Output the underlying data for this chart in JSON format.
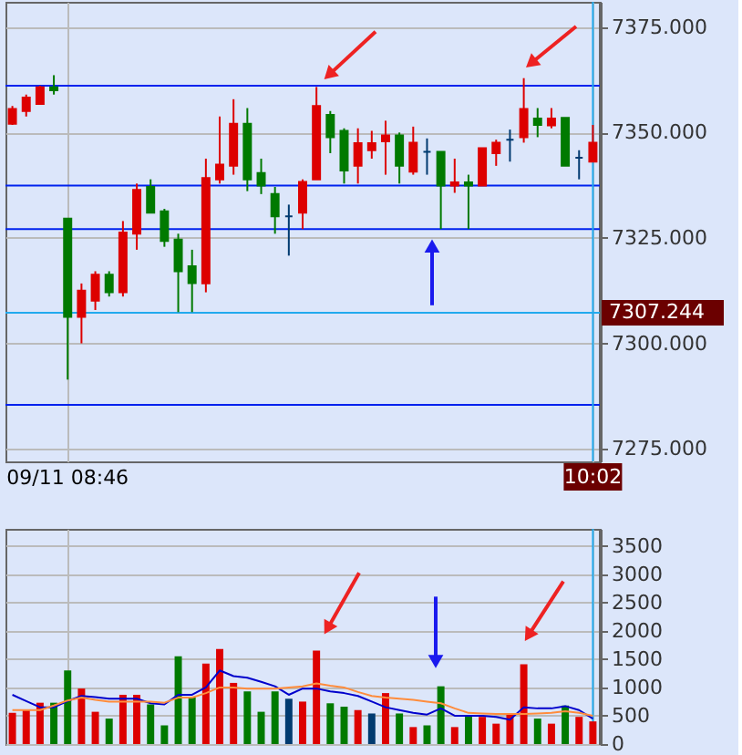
{
  "chart_data": [
    {
      "type": "candlestick",
      "categories": [
        null,
        null,
        null,
        null,
        "09/11 08:46",
        null,
        null,
        null,
        null,
        null,
        null,
        null,
        null,
        null,
        null,
        null,
        null,
        null,
        null,
        null,
        null,
        null,
        null,
        null,
        null,
        null,
        null,
        null,
        null,
        null,
        null,
        null,
        null,
        null,
        null,
        null,
        null,
        null,
        null,
        null,
        null,
        null,
        "10:02"
      ],
      "ohlc": [
        [
          7352.1,
          7356.3,
          7351.8,
          7355.6
        ],
        [
          7355.1,
          7359.0,
          7353.8,
          7358.3
        ],
        [
          7356.8,
          7361.1,
          7356.8,
          7360.7
        ],
        [
          7360.7,
          7363.6,
          7359.0,
          7360.0
        ],
        [
          7329.6,
          7329.6,
          7291.4,
          7306.3
        ],
        [
          7306.3,
          7314.2,
          7300.0,
          7312.5
        ],
        [
          7310.1,
          7317.1,
          7307.9,
          7316.3
        ],
        [
          7316.3,
          7317.1,
          7311.1,
          7312.1
        ],
        [
          7312.1,
          7329.0,
          7311.1,
          7326.3
        ],
        [
          7326.0,
          7337.9,
          7322.2,
          7336.4
        ],
        [
          7337.1,
          7338.9,
          7331.0,
          7331.0
        ],
        [
          7331.3,
          7331.9,
          7322.9,
          7324.3
        ],
        [
          7324.6,
          7326.0,
          7307.4,
          7317.1
        ],
        [
          7318.3,
          7322.2,
          7307.4,
          7314.3
        ],
        [
          7314.2,
          7343.8,
          7312.1,
          7339.2
        ],
        [
          7338.9,
          7353.8,
          7337.9,
          7342.4
        ],
        [
          7342.1,
          7357.9,
          7340.0,
          7352.1
        ],
        [
          7352.1,
          7355.8,
          7336.1,
          7338.9
        ],
        [
          7340.4,
          7343.8,
          7335.4,
          7337.4
        ],
        [
          7335.4,
          7337.1,
          7326.0,
          7330.1
        ],
        [
          7330.1,
          7332.9,
          7320.8,
          7330.1
        ],
        [
          7331.0,
          7338.9,
          7327.1,
          7338.3
        ],
        [
          7338.9,
          7360.8,
          7338.9,
          7356.3
        ],
        [
          7354.2,
          7355.1,
          7345.1,
          7348.9
        ],
        [
          7350.4,
          7351.0,
          7337.9,
          7341.0
        ],
        [
          7342.1,
          7351.0,
          7337.9,
          7347.5
        ],
        [
          7345.8,
          7350.4,
          7343.8,
          7347.5
        ],
        [
          7347.9,
          7352.8,
          7340.0,
          7349.3
        ],
        [
          7349.3,
          7350.0,
          7337.9,
          7342.1
        ],
        [
          7340.7,
          7351.4,
          7340.0,
          7347.6
        ],
        [
          7345.4,
          7348.6,
          7340.0,
          7345.4
        ],
        [
          7345.4,
          7345.4,
          7327.1,
          7337.4
        ],
        [
          7337.4,
          7343.8,
          7335.7,
          7338.2
        ],
        [
          7338.2,
          7340.0,
          7327.1,
          7337.4
        ],
        [
          7337.4,
          7346.3,
          7337.4,
          7346.3
        ],
        [
          7345.1,
          7348.3,
          7342.1,
          7347.6
        ],
        [
          7348.3,
          7350.7,
          7343.1,
          7348.3
        ],
        [
          7348.9,
          7362.9,
          7347.6,
          7355.6
        ],
        [
          7353.3,
          7355.8,
          7348.9,
          7351.8
        ],
        [
          7351.7,
          7355.8,
          7351.0,
          7353.3
        ],
        [
          7353.5,
          7353.5,
          7342.1,
          7342.1
        ],
        [
          7344.0,
          7345.8,
          7338.9,
          7344.0
        ],
        [
          7343.1,
          7351.8,
          7343.1,
          7347.6
        ]
      ],
      "colors": [
        "#dd0000",
        "#dd0000",
        "#dd0000",
        "#007a00",
        "#007a00",
        "#dd0000",
        "#dd0000",
        "#007a00",
        "#dd0000",
        "#dd0000",
        "#007a00",
        "#007a00",
        "#007a00",
        "#007a00",
        "#dd0000",
        "#dd0000",
        "#dd0000",
        "#007a00",
        "#007a00",
        "#007a00",
        "#003a70",
        "#dd0000",
        "#dd0000",
        "#007a00",
        "#007a00",
        "#dd0000",
        "#dd0000",
        "#dd0000",
        "#007a00",
        "#dd0000",
        "#003a70",
        "#007a00",
        "#dd0000",
        "#007a00",
        "#dd0000",
        "#dd0000",
        "#003a70",
        "#dd0000",
        "#007a00",
        "#dd0000",
        "#007a00",
        "#003a70",
        "#dd0000"
      ],
      "ylim": [
        7272,
        7381
      ],
      "yticks": [
        {
          "value": 7275,
          "label": "7275.000"
        },
        {
          "value": 7300,
          "label": "7300.000"
        },
        {
          "value": 7325,
          "label": "7325.000"
        },
        {
          "value": 7350,
          "label": "7350.000"
        },
        {
          "value": 7375,
          "label": "7375.000"
        }
      ],
      "grid": true,
      "ref_lines": [
        {
          "axis": "y",
          "value": 7361.1,
          "color": "#0022ee"
        },
        {
          "axis": "y",
          "value": 7337.4,
          "color": "#0022ee"
        },
        {
          "axis": "y",
          "value": 7327.1,
          "color": "#0022ee"
        },
        {
          "axis": "y",
          "value": 7285.4,
          "color": "#0022ee"
        },
        {
          "axis": "y",
          "value": 7307.244,
          "label": "7307.244",
          "color": "#22aaee"
        },
        {
          "axis": "x",
          "value": "10:02",
          "color": "#22aaee"
        }
      ]
    },
    {
      "type": "bar",
      "categories": [
        null,
        null,
        null,
        null,
        "09/11 08:46",
        null,
        null,
        null,
        null,
        null,
        null,
        null,
        null,
        null,
        null,
        null,
        null,
        null,
        null,
        null,
        null,
        null,
        null,
        null,
        null,
        null,
        null,
        null,
        null,
        null,
        null,
        null,
        null,
        null,
        null,
        null,
        null,
        null,
        null,
        null,
        null,
        null,
        "10:02"
      ],
      "series": [
        {
          "type": "bar",
          "values": [
            550,
            600,
            730,
            730,
            1300,
            980,
            570,
            450,
            870,
            870,
            700,
            330,
            1550,
            830,
            1420,
            1680,
            1080,
            930,
            570,
            930,
            800,
            750,
            1650,
            720,
            660,
            600,
            540,
            900,
            540,
            300,
            330,
            1020,
            300,
            500,
            480,
            360,
            520,
            1410,
            450,
            360,
            680,
            480,
            400
          ],
          "colors": [
            "#dd0000",
            "#dd0000",
            "#dd0000",
            "#007a00",
            "#007a00",
            "#dd0000",
            "#dd0000",
            "#007a00",
            "#dd0000",
            "#dd0000",
            "#007a00",
            "#007a00",
            "#007a00",
            "#007a00",
            "#dd0000",
            "#dd0000",
            "#dd0000",
            "#007a00",
            "#007a00",
            "#007a00",
            "#003a70",
            "#dd0000",
            "#dd0000",
            "#007a00",
            "#007a00",
            "#dd0000",
            "#003a70",
            "#dd0000",
            "#007a00",
            "#dd0000",
            "#007a00",
            "#007a00",
            "#dd0000",
            "#007a00",
            "#dd0000",
            "#dd0000",
            "#dd0000",
            "#dd0000",
            "#007a00",
            "#dd0000",
            "#007a00",
            "#dd0000",
            "#dd0000"
          ]
        },
        {
          "type": "line",
          "color": "#0000cc",
          "values": [
            870,
            760,
            650,
            650,
            760,
            850,
            830,
            800,
            800,
            800,
            720,
            700,
            870,
            870,
            1000,
            1300,
            1200,
            1170,
            1100,
            1020,
            870,
            980,
            980,
            930,
            900,
            850,
            750,
            650,
            600,
            550,
            520,
            630,
            500,
            500,
            500,
            480,
            430,
            650,
            630,
            630,
            670,
            600,
            450
          ]
        },
        {
          "type": "line",
          "color": "#ff8c3c",
          "values": [
            600,
            600,
            600,
            680,
            770,
            820,
            780,
            750,
            750,
            750,
            750,
            730,
            820,
            820,
            900,
            1000,
            1000,
            980,
            980,
            980,
            1000,
            1020,
            1070,
            1030,
            1000,
            920,
            850,
            820,
            800,
            780,
            750,
            720,
            630,
            550,
            540,
            530,
            530,
            530,
            540,
            550,
            580,
            550,
            500
          ]
        }
      ],
      "ylim": [
        0,
        3800
      ],
      "yticks": [
        0,
        500,
        1000,
        1500,
        2000,
        2500,
        3000,
        3500
      ],
      "grid": true,
      "tick_labels": "y",
      "ref_lines": [
        {
          "axis": "x",
          "value": "10:02",
          "color": "#22aaee"
        }
      ]
    }
  ]
}
